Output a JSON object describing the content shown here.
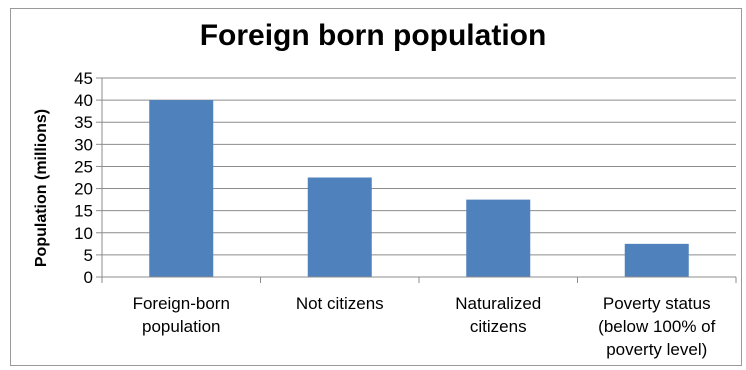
{
  "chart_data": {
    "type": "bar",
    "title": "Foreign born population",
    "xlabel": "",
    "ylabel": "Population (millions)",
    "ylim": [
      0,
      45
    ],
    "yticks": [
      0,
      5,
      10,
      15,
      20,
      25,
      30,
      35,
      40,
      45
    ],
    "grid": true,
    "legend": "none",
    "bar_color": "#4f81bd",
    "categories": [
      [
        "Foreign-born",
        "population"
      ],
      [
        "Not citizens"
      ],
      [
        "Naturalized",
        "citizens"
      ],
      [
        "Poverty status",
        "(below 100% of",
        "poverty level)"
      ]
    ],
    "values": [
      40,
      22.5,
      17.5,
      7.5
    ]
  }
}
